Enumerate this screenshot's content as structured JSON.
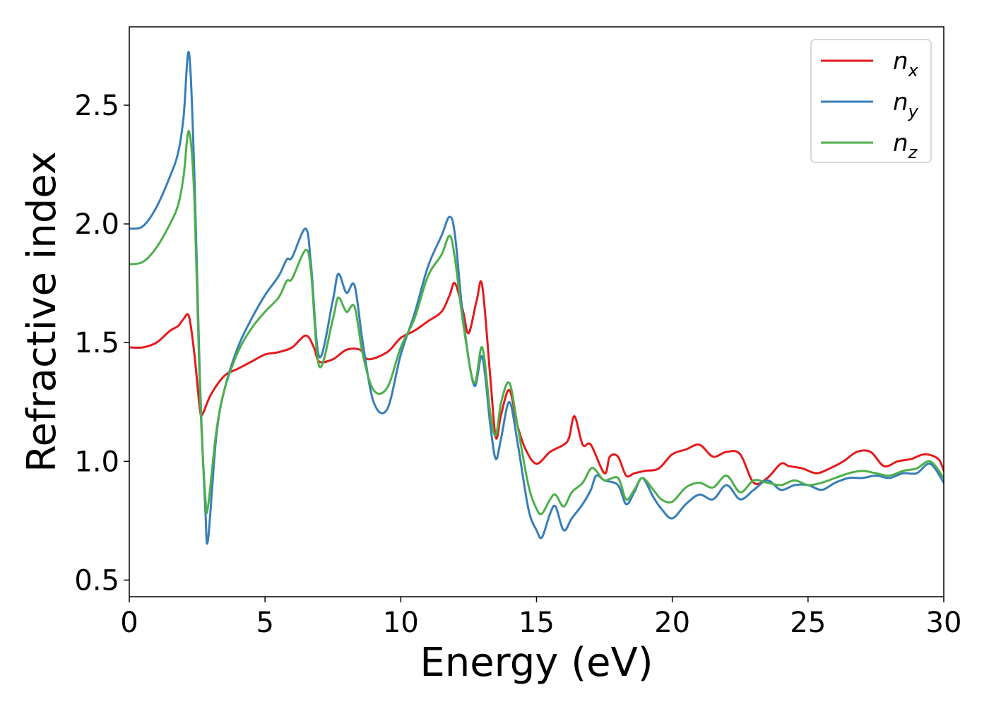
{
  "chart_data": {
    "type": "line",
    "xlabel": "Energy (eV)",
    "ylabel": "Refractive index",
    "xlim": [
      0,
      30
    ],
    "ylim": [
      0.43,
      2.83
    ],
    "xticks": [
      0,
      5,
      10,
      15,
      20,
      25,
      30
    ],
    "yticks": [
      0.5,
      1.0,
      1.5,
      2.0,
      2.5
    ],
    "xtick_labels": [
      "0",
      "5",
      "10",
      "15",
      "20",
      "25",
      "30"
    ],
    "ytick_labels": [
      "0.5",
      "1.0",
      "1.5",
      "2.0",
      "2.5"
    ],
    "grid": false,
    "legend_position": "top-right",
    "series": [
      {
        "name": "n_x",
        "label_base": "n",
        "label_sub": "x",
        "color": "#e41a1c",
        "x": [
          0,
          0.5,
          1.0,
          1.5,
          1.8,
          2.0,
          2.2,
          2.4,
          2.6,
          2.7,
          3.0,
          3.5,
          4.0,
          4.5,
          5.0,
          5.5,
          6.0,
          6.5,
          6.8,
          7.0,
          7.5,
          8.0,
          8.5,
          8.8,
          9.5,
          10.0,
          10.5,
          11.0,
          11.5,
          11.8,
          12.0,
          12.3,
          12.5,
          12.8,
          13.0,
          13.3,
          13.5,
          13.7,
          14.0,
          14.3,
          14.6,
          15.0,
          15.5,
          16.0,
          16.2,
          16.4,
          16.7,
          17.0,
          17.5,
          17.7,
          18.0,
          18.3,
          18.6,
          19.0,
          19.5,
          20.0,
          20.5,
          21.0,
          21.5,
          22.0,
          22.5,
          23.0,
          23.5,
          24.0,
          24.3,
          24.8,
          25.3,
          25.8,
          26.3,
          26.8,
          27.3,
          27.8,
          28.3,
          28.8,
          29.3,
          29.8,
          30.0
        ],
        "values": [
          1.48,
          1.48,
          1.5,
          1.55,
          1.57,
          1.6,
          1.61,
          1.45,
          1.22,
          1.2,
          1.28,
          1.36,
          1.39,
          1.42,
          1.45,
          1.46,
          1.48,
          1.53,
          1.48,
          1.42,
          1.43,
          1.47,
          1.47,
          1.43,
          1.46,
          1.52,
          1.55,
          1.59,
          1.63,
          1.7,
          1.75,
          1.63,
          1.54,
          1.68,
          1.74,
          1.35,
          1.1,
          1.2,
          1.3,
          1.15,
          1.05,
          0.99,
          1.04,
          1.07,
          1.1,
          1.19,
          1.07,
          1.07,
          0.95,
          1.02,
          1.02,
          0.94,
          0.95,
          0.96,
          0.97,
          1.03,
          1.05,
          1.07,
          1.02,
          1.04,
          1.03,
          0.91,
          0.93,
          0.99,
          0.98,
          0.97,
          0.95,
          0.97,
          1.0,
          1.04,
          1.04,
          0.98,
          1.0,
          1.01,
          1.03,
          1.01,
          0.96
        ]
      },
      {
        "name": "n_y",
        "label_base": "n",
        "label_sub": "y",
        "color": "#377eb8",
        "x": [
          0,
          0.5,
          1.0,
          1.5,
          1.8,
          2.0,
          2.2,
          2.4,
          2.6,
          2.8,
          2.9,
          3.2,
          3.5,
          4.0,
          4.5,
          5.0,
          5.5,
          5.8,
          6.0,
          6.5,
          6.7,
          7.0,
          7.5,
          7.7,
          8.0,
          8.3,
          8.6,
          9.0,
          9.5,
          10.0,
          10.5,
          11.0,
          11.5,
          11.8,
          12.0,
          12.3,
          12.7,
          13.0,
          13.3,
          13.5,
          13.7,
          14.0,
          14.3,
          14.7,
          15.0,
          15.2,
          15.5,
          15.7,
          16.0,
          16.3,
          16.7,
          17.0,
          17.2,
          17.5,
          18.0,
          18.3,
          18.6,
          18.9,
          19.3,
          19.6,
          20.0,
          20.5,
          21.0,
          21.5,
          22.0,
          22.5,
          23.0,
          23.5,
          24.0,
          24.5,
          25.0,
          25.5,
          26.0,
          26.5,
          27.0,
          27.5,
          28.0,
          28.5,
          29.0,
          29.5,
          30.0
        ],
        "values": [
          1.98,
          1.99,
          2.07,
          2.2,
          2.3,
          2.45,
          2.72,
          2.2,
          1.35,
          0.8,
          0.67,
          1.1,
          1.3,
          1.48,
          1.6,
          1.7,
          1.78,
          1.85,
          1.86,
          1.98,
          1.82,
          1.44,
          1.68,
          1.79,
          1.71,
          1.74,
          1.5,
          1.25,
          1.22,
          1.45,
          1.62,
          1.82,
          1.95,
          2.03,
          1.95,
          1.6,
          1.32,
          1.44,
          1.15,
          1.01,
          1.1,
          1.25,
          1.08,
          0.8,
          0.71,
          0.68,
          0.78,
          0.81,
          0.71,
          0.76,
          0.82,
          0.88,
          0.94,
          0.92,
          0.9,
          0.82,
          0.87,
          0.93,
          0.85,
          0.8,
          0.76,
          0.82,
          0.86,
          0.84,
          0.9,
          0.84,
          0.88,
          0.92,
          0.88,
          0.9,
          0.9,
          0.88,
          0.91,
          0.93,
          0.93,
          0.94,
          0.93,
          0.95,
          0.95,
          0.99,
          0.91
        ]
      },
      {
        "name": "n_z",
        "label_base": "n",
        "label_sub": "z",
        "color": "#4daf4a",
        "x": [
          0,
          0.5,
          1.0,
          1.5,
          1.8,
          2.0,
          2.2,
          2.4,
          2.6,
          2.8,
          2.9,
          3.2,
          3.5,
          4.0,
          4.5,
          5.0,
          5.5,
          5.8,
          6.0,
          6.5,
          6.7,
          7.0,
          7.5,
          7.7,
          8.0,
          8.3,
          8.6,
          9.0,
          9.5,
          10.0,
          10.5,
          11.0,
          11.5,
          11.8,
          12.0,
          12.3,
          12.7,
          13.0,
          13.3,
          13.5,
          13.7,
          14.0,
          14.3,
          14.7,
          15.0,
          15.2,
          15.5,
          15.7,
          16.0,
          16.3,
          16.7,
          17.0,
          17.2,
          17.5,
          18.0,
          18.3,
          18.6,
          18.9,
          19.3,
          19.6,
          20.0,
          20.5,
          21.0,
          21.5,
          22.0,
          22.5,
          23.0,
          23.5,
          24.0,
          24.5,
          25.0,
          25.5,
          26.0,
          26.5,
          27.0,
          27.5,
          28.0,
          28.5,
          29.0,
          29.5,
          30.0
        ],
        "values": [
          1.83,
          1.84,
          1.9,
          2.0,
          2.08,
          2.2,
          2.39,
          2.1,
          1.3,
          0.85,
          0.81,
          1.12,
          1.3,
          1.46,
          1.56,
          1.63,
          1.69,
          1.76,
          1.77,
          1.89,
          1.79,
          1.4,
          1.6,
          1.69,
          1.63,
          1.65,
          1.45,
          1.3,
          1.31,
          1.48,
          1.6,
          1.78,
          1.87,
          1.95,
          1.85,
          1.58,
          1.33,
          1.48,
          1.2,
          1.11,
          1.25,
          1.33,
          1.15,
          0.9,
          0.8,
          0.78,
          0.84,
          0.86,
          0.81,
          0.87,
          0.91,
          0.97,
          0.96,
          0.92,
          0.93,
          0.84,
          0.88,
          0.93,
          0.88,
          0.84,
          0.83,
          0.89,
          0.91,
          0.89,
          0.94,
          0.87,
          0.92,
          0.91,
          0.9,
          0.92,
          0.9,
          0.91,
          0.93,
          0.95,
          0.96,
          0.95,
          0.94,
          0.96,
          0.97,
          1.0,
          0.93
        ]
      }
    ]
  }
}
